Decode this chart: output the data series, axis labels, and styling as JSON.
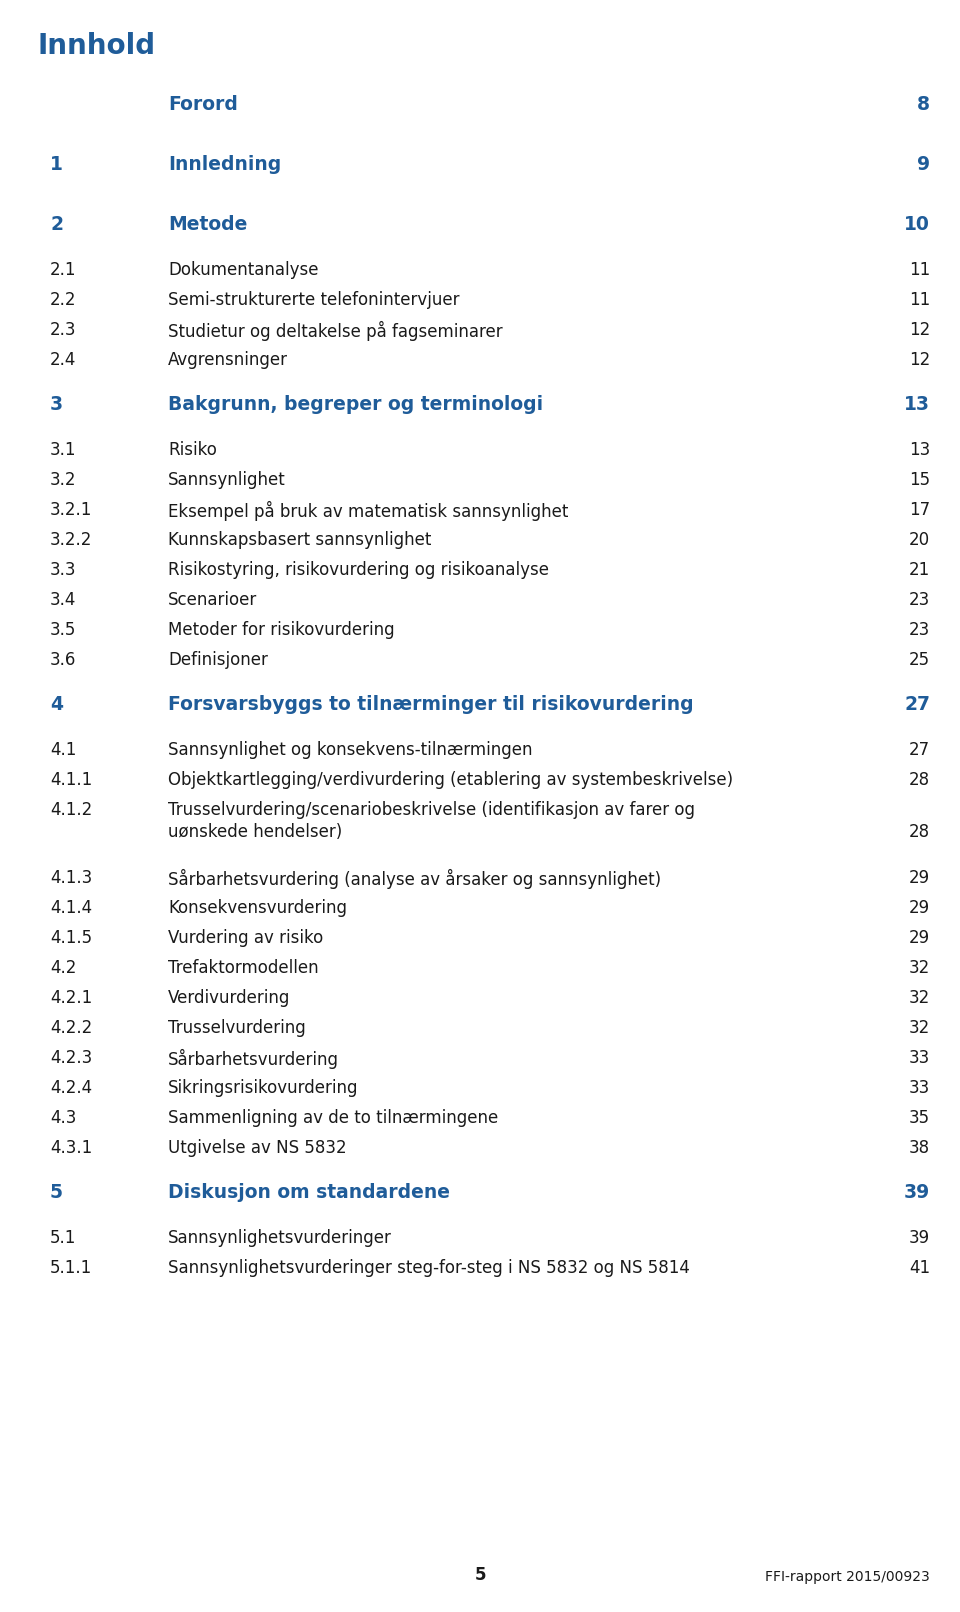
{
  "title": "Innhold",
  "title_color": "#1f5c99",
  "bg_color": "#ffffff",
  "text_color": "#1a1a1a",
  "blue_color": "#1f5c99",
  "page_number": "5",
  "footer_text": "FFI-rapport 2015/00923",
  "entries": [
    {
      "num": "",
      "text": "Forord",
      "page": "8",
      "bold": true,
      "blue": true,
      "multiline": false
    },
    {
      "num": "1",
      "text": "Innledning",
      "page": "9",
      "bold": true,
      "blue": true,
      "multiline": false
    },
    {
      "num": "2",
      "text": "Metode",
      "page": "10",
      "bold": true,
      "blue": true,
      "multiline": false
    },
    {
      "num": "2.1",
      "text": "Dokumentanalyse",
      "page": "11",
      "bold": false,
      "blue": false,
      "multiline": false
    },
    {
      "num": "2.2",
      "text": "Semi-strukturerte telefonintervjuer",
      "page": "11",
      "bold": false,
      "blue": false,
      "multiline": false
    },
    {
      "num": "2.3",
      "text": "Studietur og deltakelse på fagseminarer",
      "page": "12",
      "bold": false,
      "blue": false,
      "multiline": false
    },
    {
      "num": "2.4",
      "text": "Avgrensninger",
      "page": "12",
      "bold": false,
      "blue": false,
      "multiline": false
    },
    {
      "num": "3",
      "text": "Bakgrunn, begreper og terminologi",
      "page": "13",
      "bold": true,
      "blue": true,
      "multiline": false
    },
    {
      "num": "3.1",
      "text": "Risiko",
      "page": "13",
      "bold": false,
      "blue": false,
      "multiline": false
    },
    {
      "num": "3.2",
      "text": "Sannsynlighet",
      "page": "15",
      "bold": false,
      "blue": false,
      "multiline": false
    },
    {
      "num": "3.2.1",
      "text": "Eksempel på bruk av matematisk sannsynlighet",
      "page": "17",
      "bold": false,
      "blue": false,
      "multiline": false
    },
    {
      "num": "3.2.2",
      "text": "Kunnskapsbasert sannsynlighet",
      "page": "20",
      "bold": false,
      "blue": false,
      "multiline": false
    },
    {
      "num": "3.3",
      "text": "Risikostyring, risikovurdering og risikoanalyse",
      "page": "21",
      "bold": false,
      "blue": false,
      "multiline": false
    },
    {
      "num": "3.4",
      "text": "Scenarioer",
      "page": "23",
      "bold": false,
      "blue": false,
      "multiline": false
    },
    {
      "num": "3.5",
      "text": "Metoder for risikovurdering",
      "page": "23",
      "bold": false,
      "blue": false,
      "multiline": false
    },
    {
      "num": "3.6",
      "text": "Definisjoner",
      "page": "25",
      "bold": false,
      "blue": false,
      "multiline": false
    },
    {
      "num": "4",
      "text": "Forsvarsbyggs to tilnærminger til risikovurdering",
      "page": "27",
      "bold": true,
      "blue": true,
      "multiline": false
    },
    {
      "num": "4.1",
      "text": "Sannsynlighet og konsekvens-tilnærmingen",
      "page": "27",
      "bold": false,
      "blue": false,
      "multiline": false
    },
    {
      "num": "4.1.1",
      "text": "Objektkartlegging/verdivurdering (etablering av systembeskrivelse)",
      "page": "28",
      "bold": false,
      "blue": false,
      "multiline": false
    },
    {
      "num": "4.1.2",
      "text": "Trusselvurdering/scenariobeskrivelse (identifikasjon av farer og",
      "page": "",
      "bold": false,
      "blue": false,
      "multiline": true,
      "text2": "uønskede hendelser)",
      "page2": "28"
    },
    {
      "num": "4.1.3",
      "text": "Sårbarhetsvurdering (analyse av årsaker og sannsynlighet)",
      "page": "29",
      "bold": false,
      "blue": false,
      "multiline": false
    },
    {
      "num": "4.1.4",
      "text": "Konsekvensvurdering",
      "page": "29",
      "bold": false,
      "blue": false,
      "multiline": false
    },
    {
      "num": "4.1.5",
      "text": "Vurdering av risiko",
      "page": "29",
      "bold": false,
      "blue": false,
      "multiline": false
    },
    {
      "num": "4.2",
      "text": "Trefaktormodellen",
      "page": "32",
      "bold": false,
      "blue": false,
      "multiline": false
    },
    {
      "num": "4.2.1",
      "text": "Verdivurdering",
      "page": "32",
      "bold": false,
      "blue": false,
      "multiline": false
    },
    {
      "num": "4.2.2",
      "text": "Trusselvurdering",
      "page": "32",
      "bold": false,
      "blue": false,
      "multiline": false
    },
    {
      "num": "4.2.3",
      "text": "Sårbarhetsvurdering",
      "page": "33",
      "bold": false,
      "blue": false,
      "multiline": false
    },
    {
      "num": "4.2.4",
      "text": "Sikringsrisikovurdering",
      "page": "33",
      "bold": false,
      "blue": false,
      "multiline": false
    },
    {
      "num": "4.3",
      "text": "Sammenligning av de to tilnærmingene",
      "page": "35",
      "bold": false,
      "blue": false,
      "multiline": false
    },
    {
      "num": "4.3.1",
      "text": "Utgivelse av NS 5832",
      "page": "38",
      "bold": false,
      "blue": false,
      "multiline": false
    },
    {
      "num": "5",
      "text": "Diskusjon om standardene",
      "page": "39",
      "bold": true,
      "blue": true,
      "multiline": false
    },
    {
      "num": "5.1",
      "text": "Sannsynlighetsvurderinger",
      "page": "39",
      "bold": false,
      "blue": false,
      "multiline": false
    },
    {
      "num": "5.1.1",
      "text": "Sannsynlighetsvurderinger steg-for-steg i NS 5832 og NS 5814",
      "page": "41",
      "bold": false,
      "blue": false,
      "multiline": false
    }
  ]
}
